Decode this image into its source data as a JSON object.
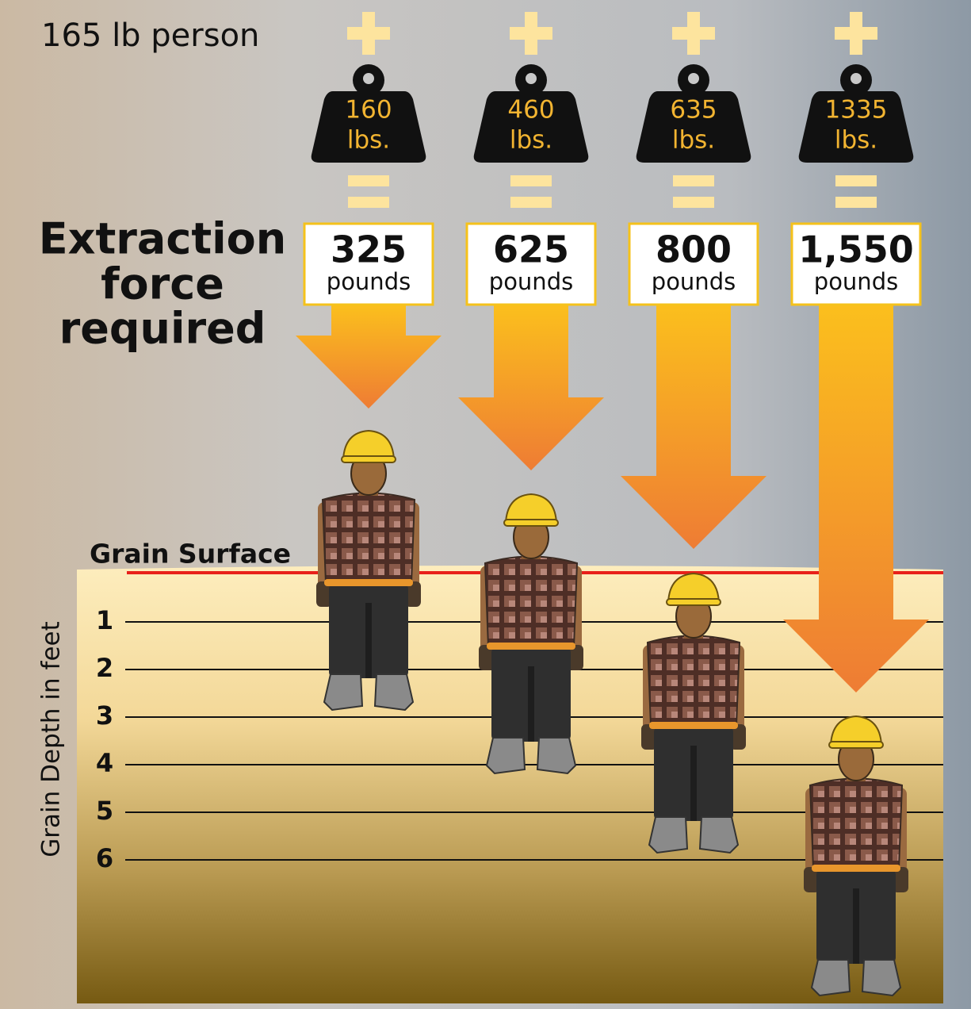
{
  "person_label": "165 lb person",
  "heading": [
    "Extraction",
    "force",
    "required"
  ],
  "columns": [
    {
      "weight": "160",
      "weight_unit": "lbs.",
      "force": "325",
      "force_unit": "pounds"
    },
    {
      "weight": "460",
      "weight_unit": "lbs.",
      "force": "625",
      "force_unit": "pounds"
    },
    {
      "weight": "635",
      "weight_unit": "lbs.",
      "force": "800",
      "force_unit": "pounds"
    },
    {
      "weight": "1335",
      "weight_unit": "lbs.",
      "force": "1,550",
      "force_unit": "pounds"
    }
  ],
  "depth_axis": {
    "title": "Grain Depth in feet",
    "surface_label": "Grain Surface",
    "ticks": [
      1,
      2,
      3,
      4,
      5,
      6
    ]
  }
}
